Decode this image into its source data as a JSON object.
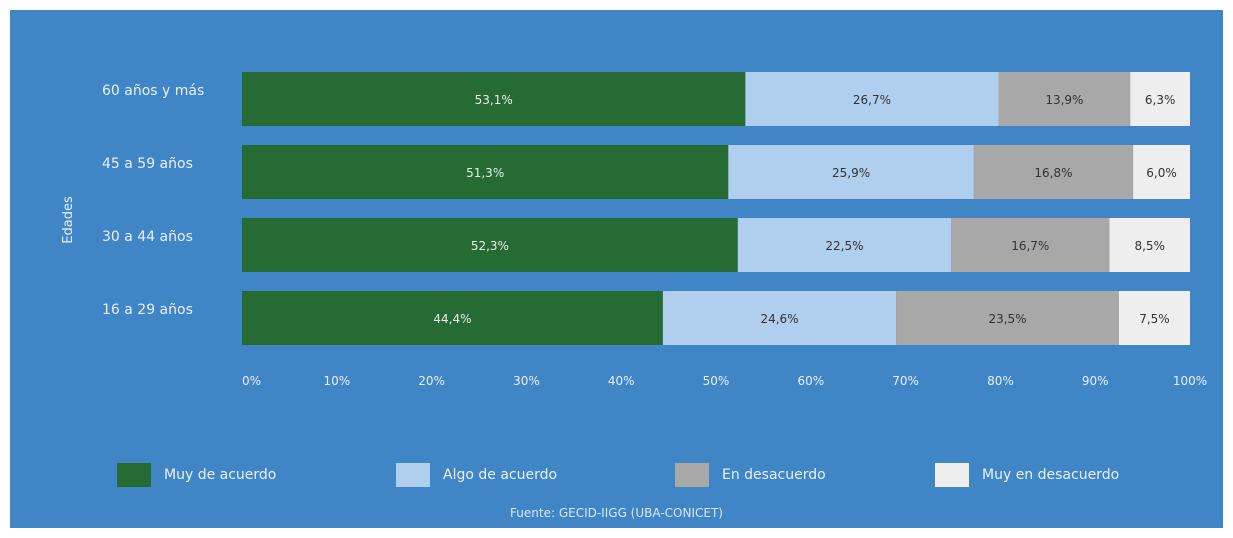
{
  "chart_data": {
    "type": "bar",
    "orientation": "horizontal",
    "stacked": true,
    "ylabel": "Edades",
    "xlabel": "",
    "xlim": [
      0,
      100
    ],
    "x_ticks": [
      "0%",
      "10%",
      "20%",
      "30%",
      "40%",
      "50%",
      "60%",
      "70%",
      "80%",
      "90%",
      "100%"
    ],
    "grid": false,
    "legend_position": "bottom",
    "categories": [
      "60 años y más",
      "45 a 59 años",
      "30 a 44 años",
      "16 a 29 años"
    ],
    "series": [
      {
        "name": "Muy de acuerdo",
        "color": "#256b33",
        "values": [
          53.1,
          51.3,
          52.3,
          44.4
        ],
        "labels": [
          "53,1%",
          "51,3%",
          "52,3%",
          "44,4%"
        ]
      },
      {
        "name": "Algo de acuerdo",
        "color": "#b0cfee",
        "values": [
          26.7,
          25.9,
          22.5,
          24.6
        ],
        "labels": [
          "26,7%",
          "25,9%",
          "22,5%",
          "24,6%"
        ]
      },
      {
        "name": "En desacuerdo",
        "color": "#a8a8a8",
        "values": [
          13.9,
          16.8,
          16.7,
          23.5
        ],
        "labels": [
          "13,9%",
          "16,8%",
          "16,7%",
          "23,5%"
        ]
      },
      {
        "name": "Muy en desacuerdo",
        "color": "#eeeeee",
        "values": [
          6.3,
          6.0,
          8.5,
          7.5
        ],
        "labels": [
          "6,3%",
          "6,0%",
          "8,5%",
          "7,5%"
        ]
      }
    ]
  },
  "source": "Fuente: GECID-IIGG (UBA-CONICET)",
  "colors": {
    "background": "#4085c6"
  }
}
